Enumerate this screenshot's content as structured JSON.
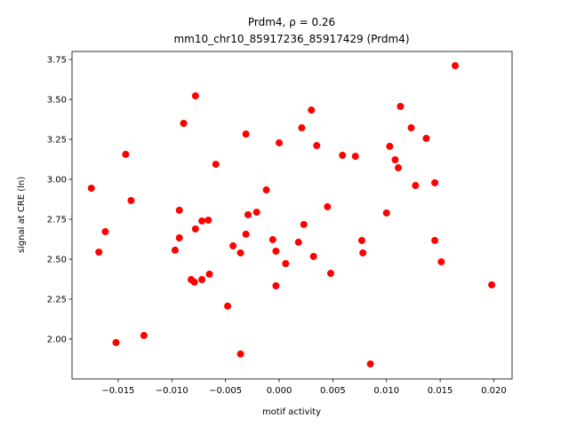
{
  "chart_data": {
    "type": "scatter",
    "title": "Prdm4, ρ = 0.26",
    "subtitle": "mm10_chr10_85917236_85917429 (Prdm4)",
    "x_label": "motif activity",
    "y_label": "signal at CRE (ln)",
    "color": "#ff0000",
    "xlim": [
      -0.0193,
      0.0217
    ],
    "ylim": [
      1.75,
      3.8
    ],
    "xticks": [
      {
        "value": -0.015,
        "label": "−0.015"
      },
      {
        "value": -0.01,
        "label": "−0.010"
      },
      {
        "value": -0.005,
        "label": "−0.005"
      },
      {
        "value": 0,
        "label": "0.000"
      },
      {
        "value": 0.005,
        "label": "0.005"
      },
      {
        "value": 0.01,
        "label": "0.010"
      },
      {
        "value": 0.015,
        "label": "0.015"
      },
      {
        "value": 0.02,
        "label": "0.020"
      }
    ],
    "yticks": [
      {
        "value": 2,
        "label": "2.00"
      },
      2.25,
      {
        "value": 2.5,
        "label": "2.50"
      },
      2.75,
      {
        "value": 3,
        "label": "3.00"
      },
      3.25,
      {
        "value": 3.5,
        "label": "3.50"
      },
      3.75
    ],
    "x": [
      -0.0175,
      -0.0168,
      -0.0162,
      -0.0152,
      -0.0143,
      -0.0138,
      -0.0126,
      -0.0097,
      -0.0093,
      -0.0093,
      -0.0089,
      -0.0082,
      -0.0079,
      -0.0078,
      -0.0078,
      -0.0072,
      -0.0072,
      -0.0066,
      -0.0065,
      -0.0059,
      -0.0048,
      -0.0043,
      -0.0036,
      -0.0036,
      -0.0031,
      -0.0031,
      -0.0029,
      -0.0021,
      -0.0012,
      -0.0006,
      -0.0003,
      -0.0003,
      0.0,
      0.0006,
      0.0018,
      0.0021,
      0.0023,
      0.003,
      0.0032,
      0.0035,
      0.0045,
      0.0048,
      0.0059,
      0.0071,
      0.0077,
      0.0078,
      0.0085,
      0.01,
      0.0103,
      0.0108,
      0.0111,
      0.0113,
      0.0123,
      0.0127,
      0.0137,
      0.0145,
      0.0145,
      0.0151,
      0.0164,
      0.0198
    ],
    "values": [
      2.944,
      2.544,
      2.672,
      1.978,
      3.156,
      2.867,
      2.022,
      2.556,
      2.633,
      2.806,
      3.35,
      2.372,
      2.356,
      2.689,
      3.522,
      2.372,
      2.739,
      2.744,
      2.406,
      3.094,
      2.206,
      2.583,
      2.539,
      1.906,
      3.283,
      2.656,
      2.778,
      2.794,
      2.933,
      2.622,
      2.55,
      2.333,
      3.228,
      2.472,
      2.606,
      3.322,
      2.717,
      3.433,
      2.517,
      3.211,
      2.828,
      2.411,
      3.15,
      3.144,
      2.617,
      2.539,
      1.844,
      2.789,
      3.206,
      3.122,
      3.072,
      3.456,
      3.322,
      2.961,
      3.256,
      2.978,
      2.617,
      2.483,
      3.711,
      2.339
    ]
  }
}
